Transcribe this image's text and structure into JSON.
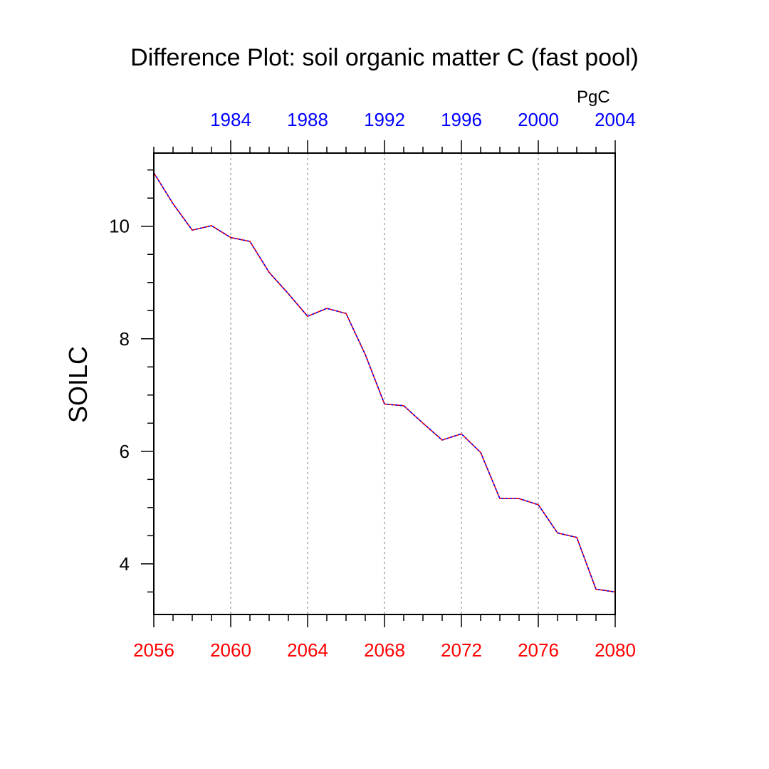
{
  "chart_data": {
    "type": "line",
    "title": "Difference Plot: soil organic matter C (fast pool)",
    "ylabel": "SOILC",
    "units": "PgC",
    "x_bottom": {
      "color": "#ff0000",
      "range": [
        2056,
        2080
      ],
      "ticks": [
        "2056",
        "2060",
        "2064",
        "2068",
        "2072",
        "2076",
        "2080"
      ]
    },
    "x_top": {
      "color": "#0000ff",
      "range": [
        1980,
        2004
      ],
      "ticks": [
        "1984",
        "1988",
        "1992",
        "1996",
        "2000",
        "2004"
      ]
    },
    "ylim": [
      3.1,
      11.3
    ],
    "y_ticks": [
      "4",
      "6",
      "8",
      "10"
    ],
    "grid": "vertical-dotted",
    "x": [
      2056,
      2057,
      2058,
      2059,
      2060,
      2061,
      2062,
      2063,
      2064,
      2065,
      2066,
      2067,
      2068,
      2069,
      2070,
      2071,
      2072,
      2073,
      2074,
      2075,
      2076,
      2077,
      2078,
      2079,
      2080
    ],
    "series": [
      {
        "name": "red line",
        "color": "#ff0000",
        "values": [
          10.95,
          10.4,
          9.93,
          10.01,
          9.8,
          9.73,
          9.18,
          8.8,
          8.4,
          8.54,
          8.45,
          7.72,
          6.84,
          6.81,
          6.5,
          6.2,
          6.31,
          5.98,
          5.16,
          5.16,
          5.05,
          4.55,
          4.47,
          3.55,
          3.5
        ]
      },
      {
        "name": "blue dashed line",
        "color": "#0000ff",
        "values": [
          10.95,
          10.4,
          9.93,
          10.01,
          9.8,
          9.73,
          9.18,
          8.8,
          8.4,
          8.54,
          8.45,
          7.72,
          6.84,
          6.81,
          6.5,
          6.2,
          6.31,
          5.98,
          5.16,
          5.16,
          5.05,
          4.55,
          4.47,
          3.55,
          3.5
        ]
      }
    ]
  }
}
